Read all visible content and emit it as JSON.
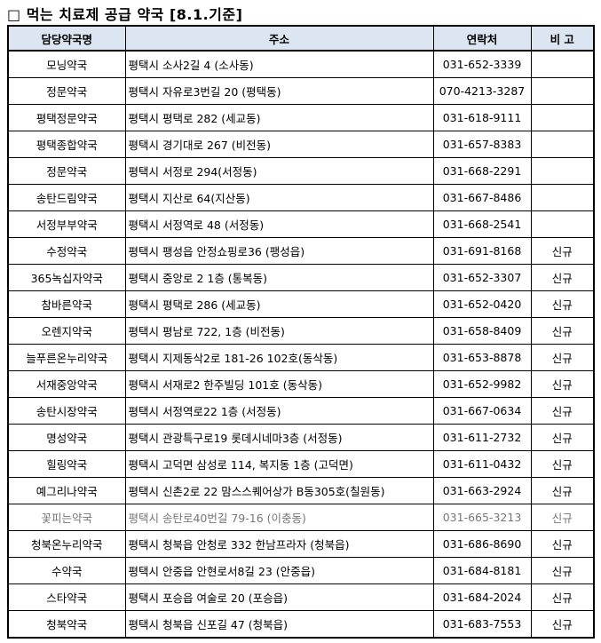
{
  "title": "□ 먹는 치료제 공급 약국 [8.1.기준]",
  "table": {
    "headers": [
      "담당약국명",
      "주소",
      "연락처",
      "비 고"
    ],
    "rows": [
      {
        "name": "모닝약국",
        "address": "평택시 소사2길 4 (소사동)",
        "phone": "031-652-3339"
      },
      {
        "name": "정문약국",
        "address": "평택시 자유로3번길 20 (평택동)",
        "phone": "070-4213-3287"
      },
      {
        "name": "평택정문약국",
        "address": "평택시 평택로 282 (세교동)",
        "phone": "031-618-9111"
      },
      {
        "name": "평택종합약국",
        "address": "평택시 경기대로 267 (비전동)",
        "phone": "031-657-8383"
      },
      {
        "name": "정문약국",
        "address": "평택시 서정로 294(서정동)",
        "phone": "031-668-2291"
      },
      {
        "name": "송탄드림약국",
        "address": "평택시 지산로 64(지산동)",
        "phone": "031-667-8486"
      },
      {
        "name": "서정부부약국",
        "address": "평택시 서정역로 48 (서정동)",
        "phone": "031-668-2541"
      },
      {
        "name": "수정약국",
        "address": "평택시 팽성읍 안정쇼핑로36 (팽성읍)",
        "phone": "031-691-8168",
        "note": "신규"
      },
      {
        "name": "365녹십자약국",
        "address": "평택시 중앙로 2 1층 (통복동)",
        "phone": "031-652-3307",
        "note": "신규"
      },
      {
        "name": "참바른약국",
        "address": "평택시 평택로 286 (세교동)",
        "phone": "031-652-0420",
        "note": "신규"
      },
      {
        "name": "오렌지약국",
        "address": "평택시 평남로 722, 1층 (비전동)",
        "phone": "031-658-8409",
        "note": "신규"
      },
      {
        "name": "늘푸른온누리약국",
        "address": "평택시 지제동삭2로 181-26 102호(동삭동)",
        "phone": "031-653-8878",
        "note": "신규"
      },
      {
        "name": "서재중앙약국",
        "address": "평택시 서재로2 한주빌딩 101호 (동삭동)",
        "phone": "031-652-9982",
        "note": "신규"
      },
      {
        "name": "송탄시장약국",
        "address": "평택시 서정역로22 1층 (서정동)",
        "phone": "031-667-0634",
        "note": "신규"
      },
      {
        "name": "명성약국",
        "address": "평택시 관광특구로19 롯데시네마3층 (서정동)",
        "phone": "031-611-2732",
        "note": "신규"
      },
      {
        "name": "힐링약국",
        "address": "평택시 고덕면 삼성로 114, 복지동 1층 (고덕면)",
        "phone": "031-611-0432",
        "note": "신규"
      },
      {
        "name": "예그리나약국",
        "address": "평택시 신촌2로 22 맘스스퀘어상가 B동305호(칠원동)",
        "phone": "031-663-2924",
        "note": "신규"
      },
      {
        "name": "꽃피는약국",
        "address": "평택시 송탄로40번길 79-16 (이충동)",
        "phone": "031-665-3213",
        "note": "신규",
        "muted": true
      },
      {
        "name": "청북온누리약국",
        "address": "평택시 청북읍 안청로 332 한남프라자 (청북읍)",
        "phone": "031-686-8690",
        "note": "신규"
      },
      {
        "name": "수약국",
        "address": "평택시 안중읍 안현로서8길 23 (안중읍)",
        "phone": "031-684-8181",
        "note": "신규"
      },
      {
        "name": "스타약국",
        "address": "평택시 포승읍 여술로 20 (포승읍)",
        "phone": "031-684-2024",
        "note": "신규"
      },
      {
        "name": "청북약국",
        "address": "평택시 청북읍 신포길 47 (청북읍)",
        "phone": "031-683-7553",
        "note": "신규"
      }
    ]
  }
}
